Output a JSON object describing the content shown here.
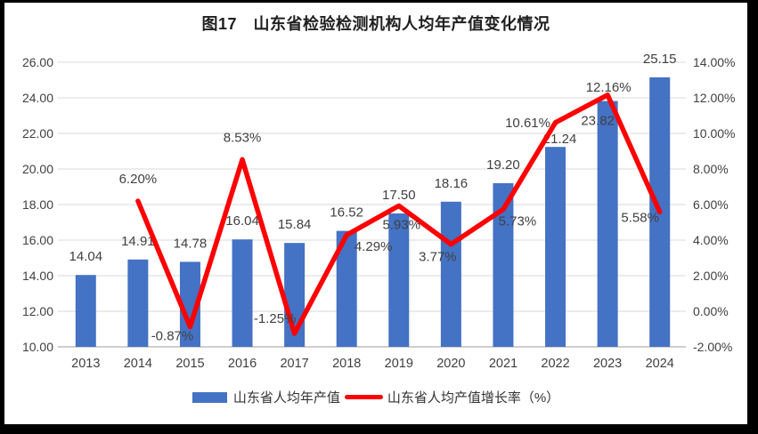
{
  "title": "图17　山东省检验检测机构人均年产值变化情况",
  "legend": {
    "items": [
      {
        "label": "山东省人均年产值",
        "swatch": "bar"
      },
      {
        "label": "山东省人均产值增长率（%）",
        "swatch": "line"
      }
    ]
  },
  "colors": {
    "bar": "#4472C4",
    "line": "#FE0000",
    "grid": "#D9D9D9",
    "axis_line": "#BFBFBF",
    "tick_text": "#404040",
    "data_label_text": "#404040",
    "frame": "#000000",
    "panel": "#FFFFFF"
  },
  "chart_data": {
    "type": "bar+line",
    "title": "图17　山东省检验检测机构人均年产值变化情况",
    "categories": [
      "2013",
      "2014",
      "2015",
      "2016",
      "2017",
      "2018",
      "2019",
      "2020",
      "2021",
      "2022",
      "2023",
      "2024"
    ],
    "series": [
      {
        "name": "山东省人均年产值",
        "type": "bar",
        "axis": "left",
        "values": [
          14.04,
          14.91,
          14.78,
          16.04,
          15.84,
          16.52,
          17.5,
          18.16,
          19.2,
          21.24,
          23.82,
          25.15
        ],
        "data_labels": [
          "14.04",
          "14.91",
          "14.78",
          "16.04",
          "15.84",
          "16.52",
          "17.50",
          "18.16",
          "19.20",
          "21.24",
          "23.82",
          "25.15"
        ]
      },
      {
        "name": "山东省人均产值增长率（%）",
        "type": "line",
        "axis": "right",
        "values": [
          null,
          6.2,
          -0.87,
          8.53,
          -1.25,
          4.29,
          5.93,
          3.77,
          5.73,
          10.61,
          12.16,
          5.58
        ],
        "data_labels": [
          null,
          "6.20%",
          "-0.87%",
          "8.53%",
          "-1.25%",
          "4.29%",
          "5.93%",
          "3.77%",
          "5.73%",
          "10.61%",
          "12.16%",
          "5.58%"
        ]
      }
    ],
    "left_axis": {
      "min": 10,
      "max": 26,
      "step": 2,
      "tick_labels": [
        "10.00",
        "12.00",
        "14.00",
        "16.00",
        "18.00",
        "20.00",
        "22.00",
        "24.00",
        "26.00"
      ]
    },
    "right_axis": {
      "min": -2,
      "max": 14,
      "step": 2,
      "tick_labels": [
        "-2.00%",
        "0.00%",
        "2.00%",
        "4.00%",
        "6.00%",
        "8.00%",
        "10.00%",
        "12.00%",
        "14.00%"
      ]
    },
    "grid": "horizontal",
    "legend_position": "bottom"
  }
}
